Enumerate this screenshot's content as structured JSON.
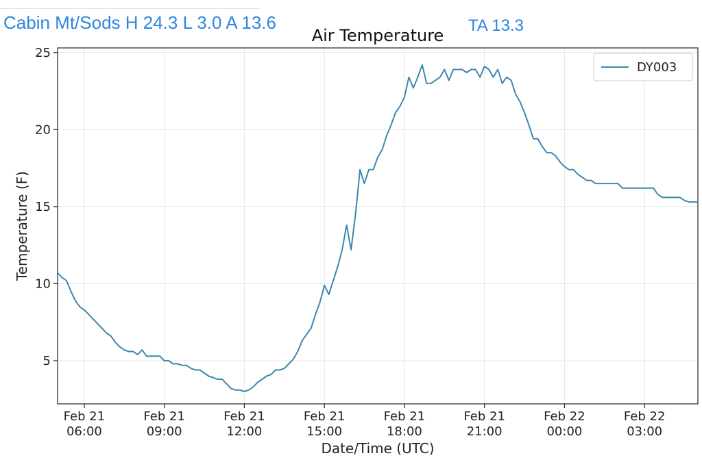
{
  "header": {
    "station_line": "Cabin Mt/Sods H 24.3 L 3.0 A 13.6",
    "ta_line": "TA 13.3",
    "color": "#2e86de"
  },
  "chart_data": {
    "type": "line",
    "title": "Air Temperature",
    "xlabel": "Date/Time (UTC)",
    "ylabel": "Temperature (F)",
    "xlim": [
      "2021-02-21 05:00",
      "2021-02-22 05:00"
    ],
    "ylim": [
      2.2,
      25.3
    ],
    "grid": true,
    "legend_position": "top-right",
    "x_ticks": [
      {
        "date": "Feb 21",
        "time": "06:00"
      },
      {
        "date": "Feb 21",
        "time": "09:00"
      },
      {
        "date": "Feb 21",
        "time": "12:00"
      },
      {
        "date": "Feb 21",
        "time": "15:00"
      },
      {
        "date": "Feb 21",
        "time": "18:00"
      },
      {
        "date": "Feb 21",
        "time": "21:00"
      },
      {
        "date": "Feb 22",
        "time": "00:00"
      },
      {
        "date": "Feb 22",
        "time": "03:00"
      }
    ],
    "y_ticks": [
      "5",
      "10",
      "15",
      "20",
      "25"
    ],
    "series": [
      {
        "name": "DY003",
        "color": "#3d87ae",
        "x": [
          "2021-02-21 05:00",
          "2021-02-21 05:10",
          "2021-02-21 05:20",
          "2021-02-21 05:30",
          "2021-02-21 05:40",
          "2021-02-21 05:50",
          "2021-02-21 06:00",
          "2021-02-21 06:10",
          "2021-02-21 06:20",
          "2021-02-21 06:30",
          "2021-02-21 06:40",
          "2021-02-21 06:50",
          "2021-02-21 07:00",
          "2021-02-21 07:10",
          "2021-02-21 07:20",
          "2021-02-21 07:30",
          "2021-02-21 07:40",
          "2021-02-21 07:50",
          "2021-02-21 08:00",
          "2021-02-21 08:10",
          "2021-02-21 08:20",
          "2021-02-21 08:30",
          "2021-02-21 08:40",
          "2021-02-21 08:50",
          "2021-02-21 09:00",
          "2021-02-21 09:10",
          "2021-02-21 09:20",
          "2021-02-21 09:30",
          "2021-02-21 09:40",
          "2021-02-21 09:50",
          "2021-02-21 10:00",
          "2021-02-21 10:10",
          "2021-02-21 10:20",
          "2021-02-21 10:30",
          "2021-02-21 10:40",
          "2021-02-21 10:50",
          "2021-02-21 11:00",
          "2021-02-21 11:10",
          "2021-02-21 11:20",
          "2021-02-21 11:30",
          "2021-02-21 11:40",
          "2021-02-21 11:50",
          "2021-02-21 12:00",
          "2021-02-21 12:10",
          "2021-02-21 12:20",
          "2021-02-21 12:30",
          "2021-02-21 12:40",
          "2021-02-21 12:50",
          "2021-02-21 13:00",
          "2021-02-21 13:10",
          "2021-02-21 13:20",
          "2021-02-21 13:30",
          "2021-02-21 13:40",
          "2021-02-21 13:50",
          "2021-02-21 14:00",
          "2021-02-21 14:10",
          "2021-02-21 14:20",
          "2021-02-21 14:30",
          "2021-02-21 14:40",
          "2021-02-21 14:50",
          "2021-02-21 15:00",
          "2021-02-21 15:10",
          "2021-02-21 15:20",
          "2021-02-21 15:30",
          "2021-02-21 15:40",
          "2021-02-21 15:50",
          "2021-02-21 16:00",
          "2021-02-21 16:10",
          "2021-02-21 16:20",
          "2021-02-21 16:30",
          "2021-02-21 16:40",
          "2021-02-21 16:50",
          "2021-02-21 17:00",
          "2021-02-21 17:10",
          "2021-02-21 17:20",
          "2021-02-21 17:30",
          "2021-02-21 17:40",
          "2021-02-21 17:50",
          "2021-02-21 18:00",
          "2021-02-21 18:10",
          "2021-02-21 18:20",
          "2021-02-21 18:30",
          "2021-02-21 18:40",
          "2021-02-21 18:50",
          "2021-02-21 19:00",
          "2021-02-21 19:10",
          "2021-02-21 19:20",
          "2021-02-21 19:30",
          "2021-02-21 19:40",
          "2021-02-21 19:50",
          "2021-02-21 20:00",
          "2021-02-21 20:10",
          "2021-02-21 20:20",
          "2021-02-21 20:30",
          "2021-02-21 20:40",
          "2021-02-21 20:50",
          "2021-02-21 21:00",
          "2021-02-21 21:10",
          "2021-02-21 21:20",
          "2021-02-21 21:30",
          "2021-02-21 21:40",
          "2021-02-21 21:50",
          "2021-02-21 22:00",
          "2021-02-21 22:10",
          "2021-02-21 22:20",
          "2021-02-21 22:30",
          "2021-02-21 22:40",
          "2021-02-21 22:50",
          "2021-02-21 23:00",
          "2021-02-21 23:10",
          "2021-02-21 23:20",
          "2021-02-21 23:30",
          "2021-02-21 23:40",
          "2021-02-21 23:50",
          "2021-02-22 00:00",
          "2021-02-22 00:10",
          "2021-02-22 00:20",
          "2021-02-22 00:30",
          "2021-02-22 00:40",
          "2021-02-22 00:50",
          "2021-02-22 01:00",
          "2021-02-22 01:10",
          "2021-02-22 01:20",
          "2021-02-22 01:30",
          "2021-02-22 01:40",
          "2021-02-22 01:50",
          "2021-02-22 02:00",
          "2021-02-22 02:10",
          "2021-02-22 02:20",
          "2021-02-22 02:30",
          "2021-02-22 02:40",
          "2021-02-22 02:50",
          "2021-02-22 03:00",
          "2021-02-22 03:10",
          "2021-02-22 03:20",
          "2021-02-22 03:30",
          "2021-02-22 03:40",
          "2021-02-22 03:50",
          "2021-02-22 04:00",
          "2021-02-22 04:10",
          "2021-02-22 04:20",
          "2021-02-22 04:30",
          "2021-02-22 04:40",
          "2021-02-22 04:50",
          "2021-02-22 05:00"
        ],
        "y": [
          10.7,
          10.4,
          10.2,
          9.5,
          8.9,
          8.5,
          8.3,
          8.0,
          7.7,
          7.4,
          7.1,
          6.8,
          6.6,
          6.2,
          5.9,
          5.7,
          5.6,
          5.6,
          5.4,
          5.7,
          5.3,
          5.3,
          5.3,
          5.3,
          5.0,
          5.0,
          4.8,
          4.8,
          4.7,
          4.7,
          4.5,
          4.4,
          4.4,
          4.2,
          4.0,
          3.9,
          3.8,
          3.8,
          3.5,
          3.2,
          3.1,
          3.1,
          3.0,
          3.1,
          3.3,
          3.6,
          3.8,
          4.0,
          4.1,
          4.4,
          4.4,
          4.5,
          4.8,
          5.1,
          5.6,
          6.3,
          6.7,
          7.1,
          8.0,
          8.8,
          9.9,
          9.3,
          10.2,
          11.1,
          12.2,
          13.8,
          12.2,
          14.5,
          17.4,
          16.5,
          17.4,
          17.4,
          18.2,
          18.7,
          19.6,
          20.3,
          21.1,
          21.5,
          22.1,
          23.4,
          22.7,
          23.4,
          24.2,
          23.0,
          23.0,
          23.2,
          23.4,
          23.9,
          23.2,
          23.9,
          23.9,
          23.9,
          23.7,
          23.9,
          23.9,
          23.4,
          24.1,
          23.9,
          23.4,
          23.9,
          23.0,
          23.4,
          23.2,
          22.3,
          21.8,
          21.1,
          20.3,
          19.4,
          19.4,
          18.9,
          18.5,
          18.5,
          18.3,
          17.9,
          17.6,
          17.4,
          17.4,
          17.1,
          16.9,
          16.7,
          16.7,
          16.5,
          16.5,
          16.5,
          16.5,
          16.5,
          16.5,
          16.2,
          16.2,
          16.2,
          16.2,
          16.2,
          16.2,
          16.2,
          16.2,
          15.8,
          15.6,
          15.6,
          15.6,
          15.6,
          15.6,
          15.4,
          15.3,
          15.3,
          15.3
        ]
      }
    ]
  }
}
